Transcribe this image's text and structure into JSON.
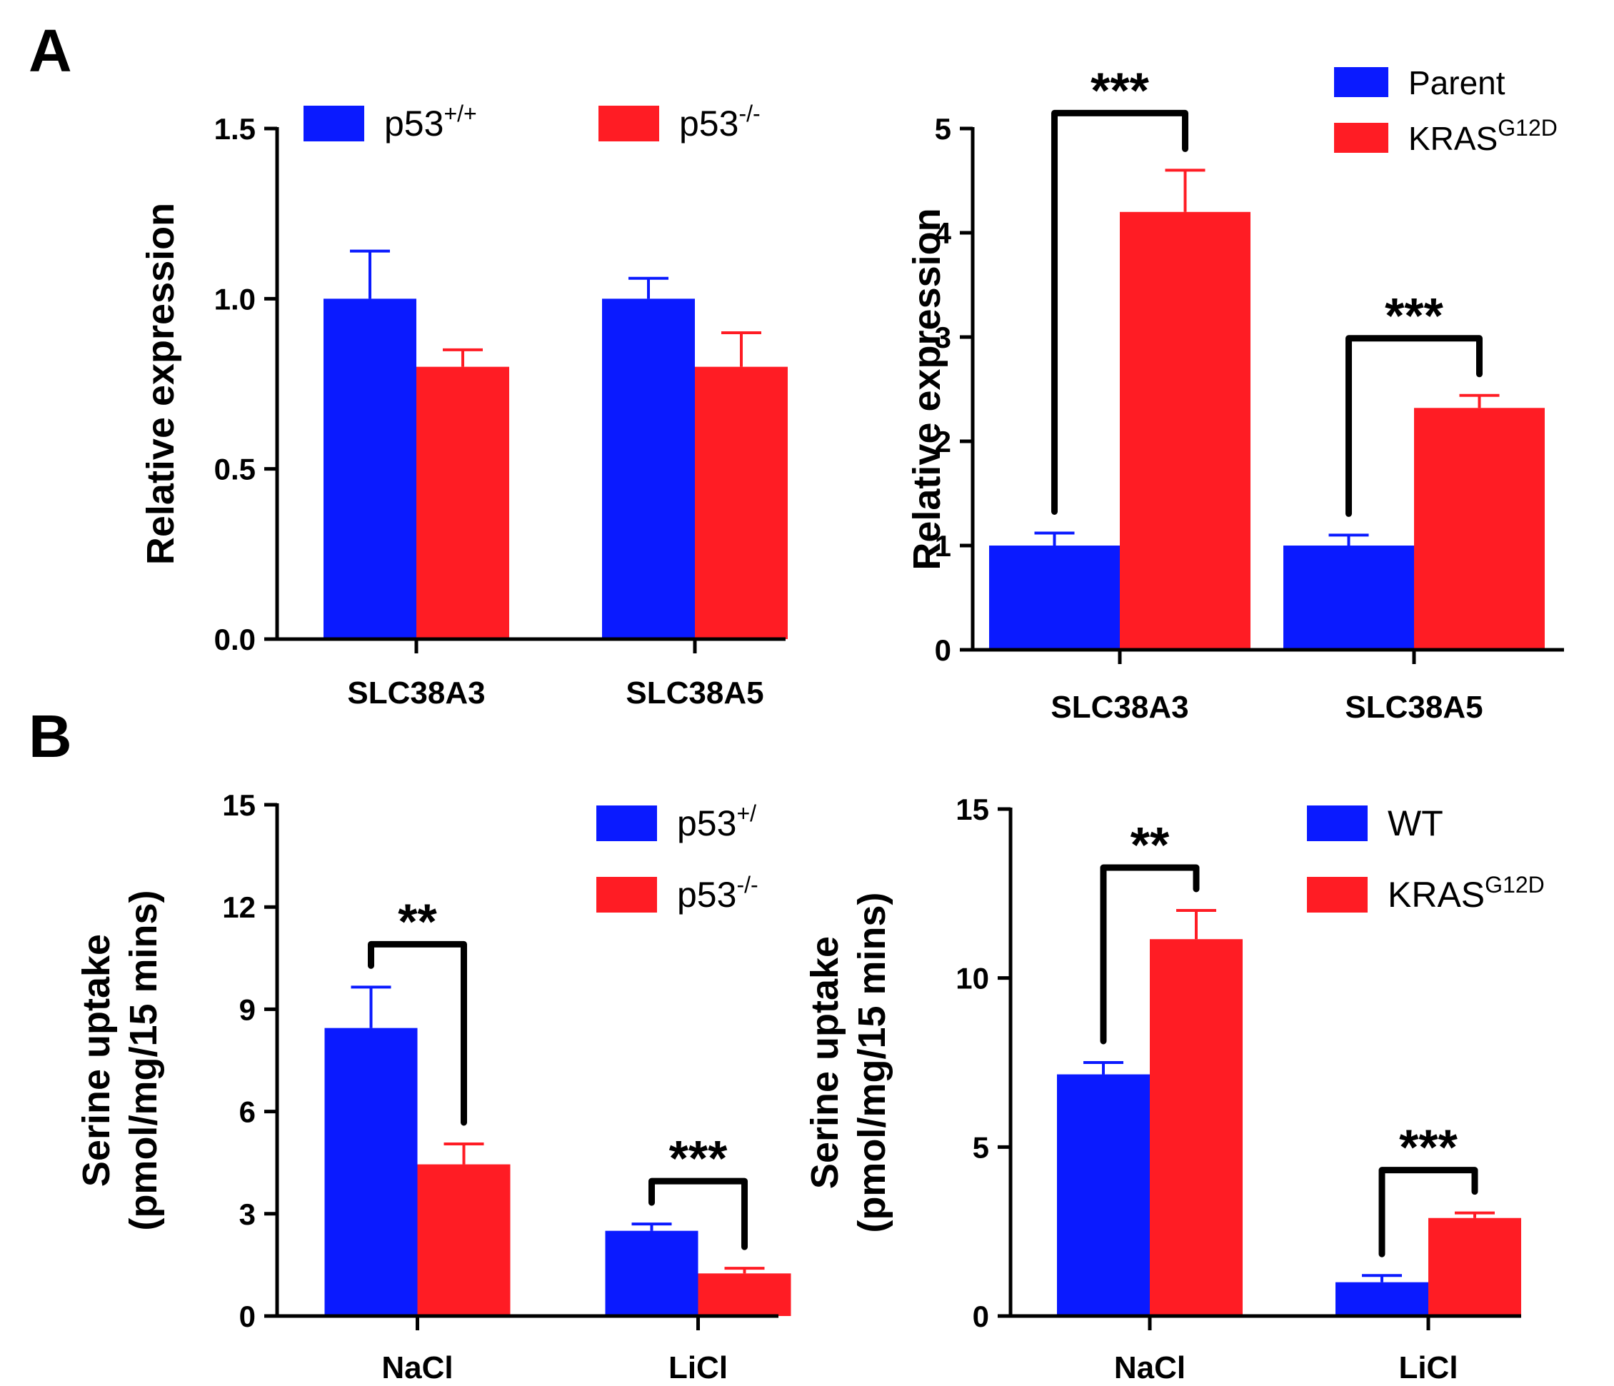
{
  "panels": [
    {
      "letter": "A"
    },
    {
      "letter": "B"
    }
  ],
  "colors": {
    "blue": "#0a1aff",
    "red": "#ff1c24",
    "axis": "#000000"
  },
  "chart_data": [
    {
      "type": "bar",
      "panel": "A",
      "categories": [
        "SLC38A3",
        "SLC38A5"
      ],
      "series": [
        {
          "name": "p53",
          "sup": "+/+",
          "color": "#0a1aff",
          "values": [
            1.0,
            1.0
          ],
          "errors": [
            0.14,
            0.06
          ]
        },
        {
          "name": "p53",
          "sup": "-/-",
          "color": "#ff1c24",
          "values": [
            0.8,
            0.8
          ],
          "errors": [
            0.05,
            0.1
          ]
        }
      ],
      "ylabel": [
        "Relative expression"
      ],
      "ylim": [
        0,
        1.5
      ],
      "yticks": [
        "0.0",
        "0.5",
        "1.0",
        "1.5"
      ],
      "significance": []
    },
    {
      "type": "bar",
      "panel": "A",
      "categories": [
        "SLC38A3",
        "SLC38A5"
      ],
      "series": [
        {
          "name": "Parent",
          "sup": "",
          "color": "#0a1aff",
          "values": [
            1.0,
            1.0
          ],
          "errors": [
            0.12,
            0.1
          ]
        },
        {
          "name": "KRAS",
          "sup": "G12D",
          "color": "#ff1c24",
          "values": [
            4.2,
            2.32
          ],
          "errors": [
            0.4,
            0.12
          ]
        }
      ],
      "ylabel": [
        "Relative expression"
      ],
      "ylim": [
        0,
        5
      ],
      "yticks": [
        "0",
        "1",
        "2",
        "3",
        "4",
        "5"
      ],
      "significance": [
        {
          "category": 0,
          "label": "***"
        },
        {
          "category": 1,
          "label": "***"
        }
      ]
    },
    {
      "type": "bar",
      "panel": "B",
      "categories": [
        "NaCl",
        "LiCl"
      ],
      "series": [
        {
          "name": "p53",
          "sup": "+/",
          "color": "#0a1aff",
          "values": [
            8.45,
            2.5
          ],
          "errors": [
            1.2,
            0.2
          ]
        },
        {
          "name": "p53",
          "sup": "-/-",
          "color": "#ff1c24",
          "values": [
            4.45,
            1.25
          ],
          "errors": [
            0.6,
            0.15
          ]
        }
      ],
      "ylabel": [
        "Serine uptake",
        "(pmol/mg/15 mins)"
      ],
      "ylim": [
        0,
        15
      ],
      "yticks": [
        "0",
        "3",
        "6",
        "9",
        "12",
        "15"
      ],
      "significance": [
        {
          "category": 0,
          "label": "**"
        },
        {
          "category": 1,
          "label": "***"
        }
      ]
    },
    {
      "type": "bar",
      "panel": "B",
      "categories": [
        "NaCl",
        "LiCl"
      ],
      "series": [
        {
          "name": "WT",
          "sup": "",
          "color": "#0a1aff",
          "values": [
            7.15,
            1.0
          ],
          "errors": [
            0.35,
            0.2
          ]
        },
        {
          "name": "KRAS",
          "sup": "G12D",
          "color": "#ff1c24",
          "values": [
            11.15,
            2.9
          ],
          "errors": [
            0.85,
            0.15
          ]
        }
      ],
      "ylabel": [
        "Serine uptake",
        "(pmol/mg/15 mins)"
      ],
      "ylim": [
        0,
        15
      ],
      "yticks": [
        "0",
        "5",
        "10",
        "15"
      ],
      "significance": [
        {
          "category": 0,
          "label": "**"
        },
        {
          "category": 1,
          "label": "***"
        }
      ]
    }
  ]
}
